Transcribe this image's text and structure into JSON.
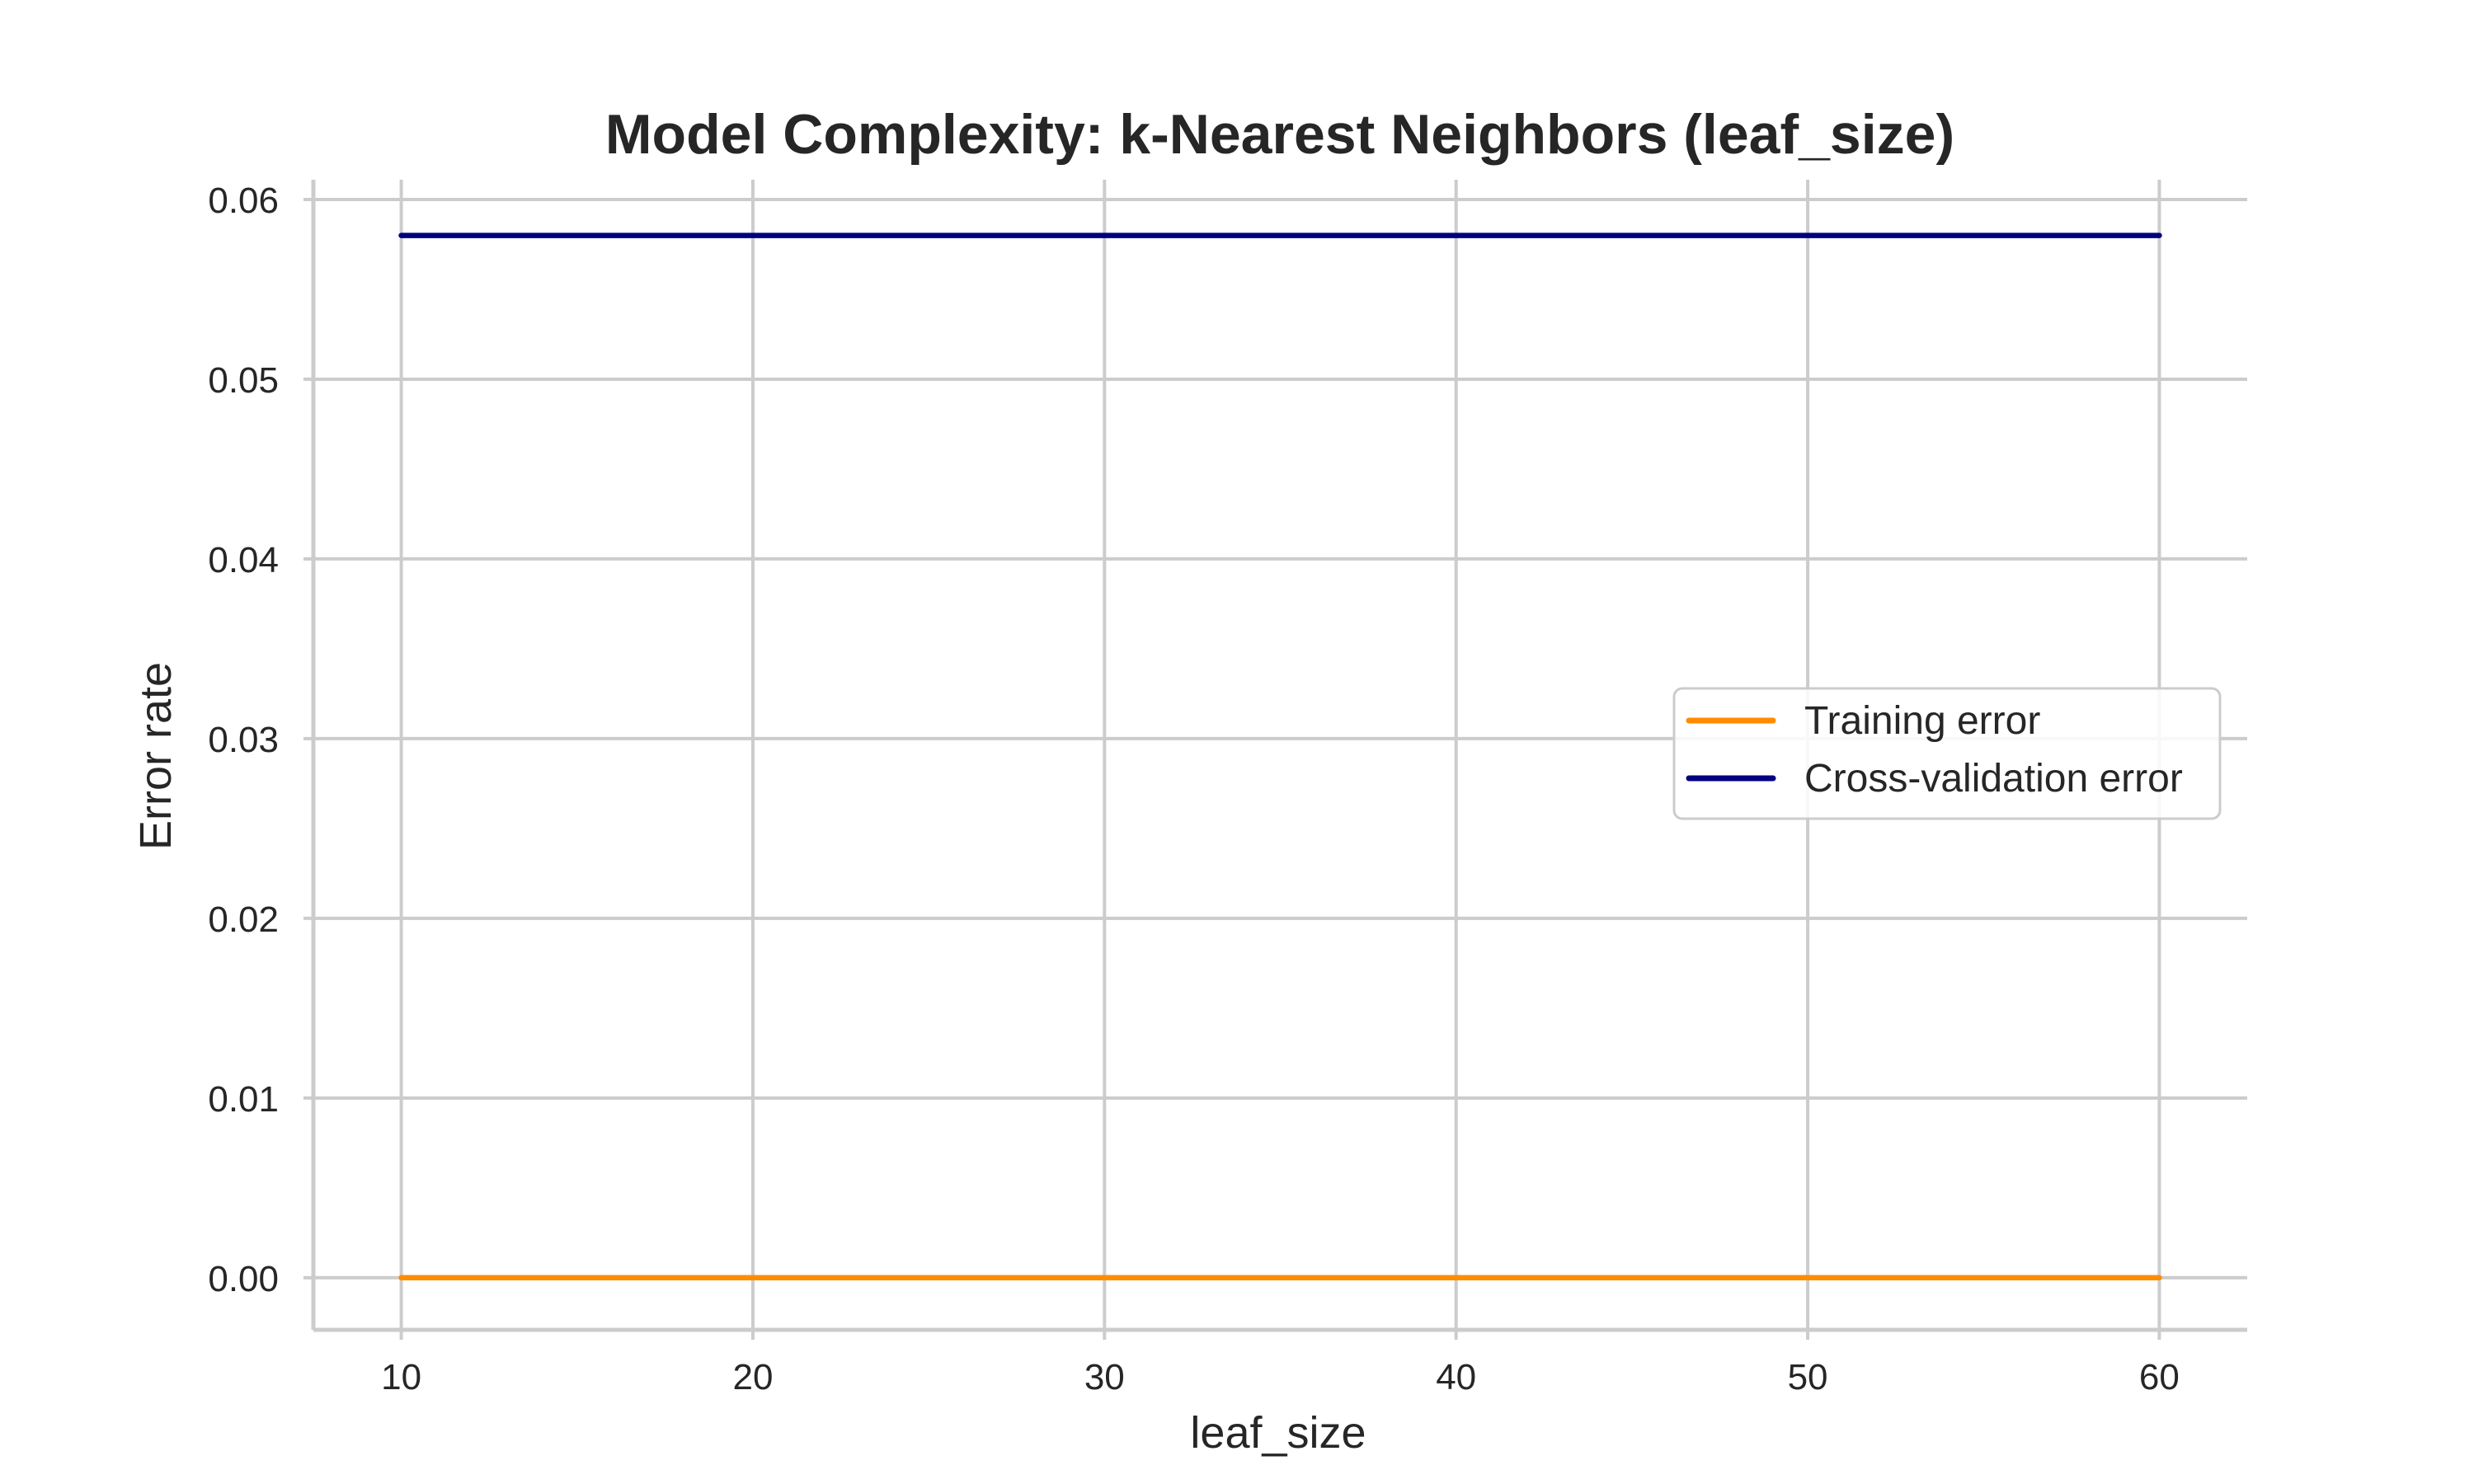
{
  "chart_data": {
    "type": "line",
    "title": "Model Complexity: k-Nearest Neighbors (leaf_size)",
    "xlabel": "leaf_size",
    "ylabel": "Error rate",
    "x": [
      10,
      20,
      30,
      40,
      50,
      60
    ],
    "xticks": [
      10,
      20,
      30,
      40,
      50,
      60
    ],
    "xtick_labels": [
      "10",
      "20",
      "30",
      "40",
      "50",
      "60"
    ],
    "yticks": [
      0.0,
      0.01,
      0.02,
      0.03,
      0.04,
      0.05,
      0.06
    ],
    "ytick_labels": [
      "0.00",
      "0.01",
      "0.02",
      "0.03",
      "0.04",
      "0.05",
      "0.06"
    ],
    "xlim": [
      7.5,
      62.5
    ],
    "ylim": [
      -0.0029,
      0.0611
    ],
    "grid": true,
    "legend_position": "center-right",
    "series": [
      {
        "name": "Training error",
        "color": "#ff8c00",
        "values": [
          0.0,
          0.0,
          0.0,
          0.0,
          0.0,
          0.0
        ]
      },
      {
        "name": "Cross-validation error",
        "color": "#000080",
        "values": [
          0.058,
          0.058,
          0.058,
          0.058,
          0.058,
          0.058
        ]
      }
    ]
  }
}
